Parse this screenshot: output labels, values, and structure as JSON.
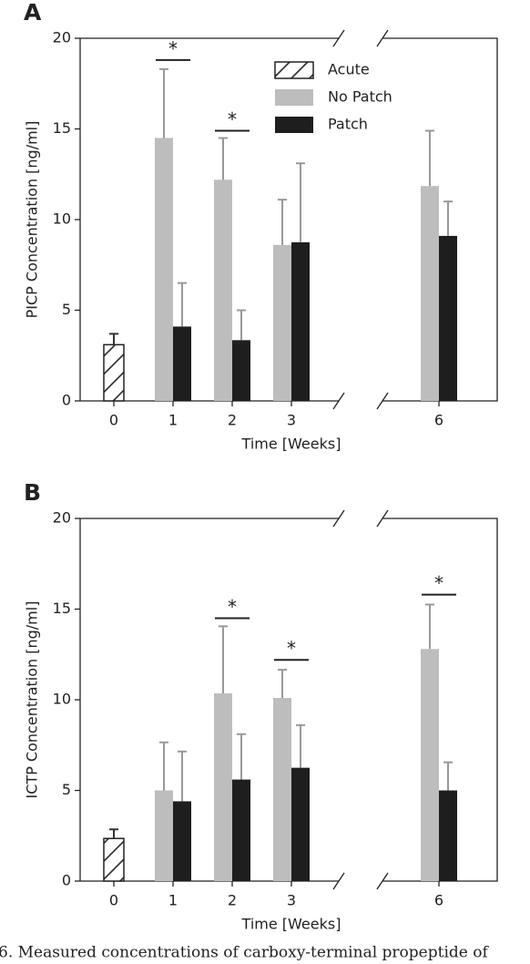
{
  "chart_data": [
    {
      "type": "bar",
      "panel": "A",
      "ylabel": "PICP Concentration [ng/ml]",
      "xlabel": "Time [Weeks]",
      "categories": [
        "0",
        "1",
        "2",
        "3",
        "6"
      ],
      "ylim": [
        0,
        20
      ],
      "yticks": [
        0,
        5,
        10,
        15,
        20
      ],
      "legend": "upper center",
      "series": [
        {
          "name": "Acute",
          "color": "#ffffff",
          "hatch": true,
          "error_color": "#333333",
          "values": [
            3.1,
            null,
            null,
            null,
            null
          ],
          "errors": [
            0.6,
            null,
            null,
            null,
            null
          ]
        },
        {
          "name": "No Patch",
          "color": "#bdbdbd",
          "hatch": false,
          "error_color": "#999999",
          "values": [
            null,
            14.5,
            12.2,
            8.6,
            11.85
          ],
          "errors": [
            null,
            3.8,
            2.3,
            2.5,
            3.05
          ]
        },
        {
          "name": "Patch",
          "color": "#1e1e1e",
          "hatch": false,
          "error_color": "#999999",
          "values": [
            null,
            4.1,
            3.35,
            8.75,
            9.1
          ],
          "errors": [
            null,
            2.4,
            1.65,
            4.35,
            1.9
          ]
        }
      ],
      "annotations": [
        {
          "text": "*",
          "category": "1",
          "y": 18.8
        },
        {
          "text": "*",
          "category": "2",
          "y": 14.9
        }
      ]
    },
    {
      "type": "bar",
      "panel": "B",
      "ylabel": "ICTP Concentration [ng/ml]",
      "xlabel": "Time [Weeks]",
      "categories": [
        "0",
        "1",
        "2",
        "3",
        "6"
      ],
      "ylim": [
        0,
        20
      ],
      "yticks": [
        0,
        5,
        10,
        15,
        20
      ],
      "series": [
        {
          "color": "#ffffff",
          "hatch": true,
          "error_color": "#333333",
          "values": [
            2.35,
            null,
            null,
            null,
            null
          ],
          "errors": [
            0.5,
            null,
            null,
            null,
            null
          ]
        },
        {
          "color": "#bdbdbd",
          "hatch": false,
          "error_color": "#999999",
          "values": [
            null,
            5.0,
            10.35,
            10.1,
            12.8
          ],
          "errors": [
            null,
            2.65,
            3.7,
            1.55,
            2.45
          ]
        },
        {
          "color": "#1e1e1e",
          "hatch": false,
          "error_color": "#999999",
          "values": [
            null,
            4.4,
            5.6,
            6.25,
            5.0
          ],
          "errors": [
            null,
            2.75,
            2.5,
            2.35,
            1.55
          ]
        }
      ],
      "annotations": [
        {
          "text": "*",
          "category": "2",
          "y": 14.5
        },
        {
          "text": "*",
          "category": "3",
          "y": 12.2
        },
        {
          "text": "*",
          "category": "6",
          "y": 15.8
        }
      ]
    }
  ],
  "caption": "6. Measured concentrations of carboxy-terminal propeptide of"
}
